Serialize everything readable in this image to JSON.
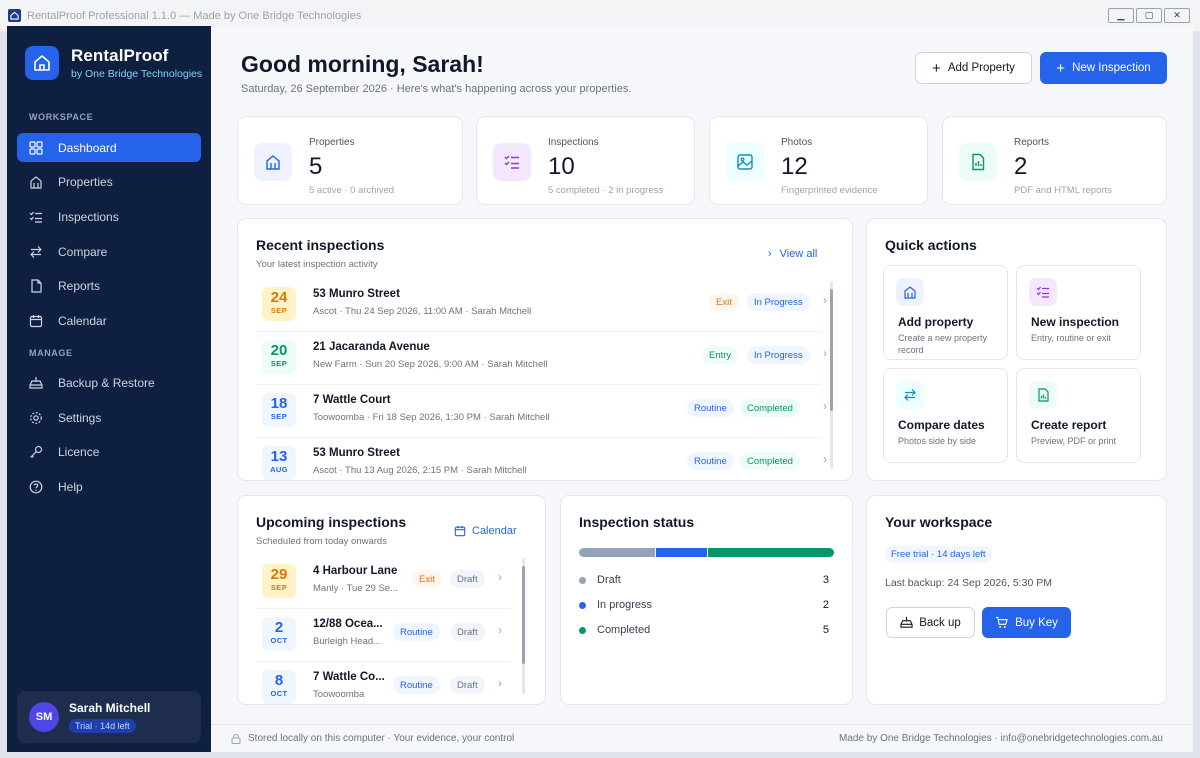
{
  "window": {
    "title": "RentalProof Professional 1.1.0 — Made by One Bridge Technologies",
    "min": "▁",
    "max": "▢",
    "close": "✕"
  },
  "brand": {
    "name": "RentalProof",
    "sub": "by One Bridge Technologies"
  },
  "sidebar": {
    "workspace_label": "WORKSPACE",
    "manage_label": "MANAGE",
    "items": [
      {
        "label": "Dashboard",
        "icon": "grid-icon"
      },
      {
        "label": "Properties",
        "icon": "building-icon"
      },
      {
        "label": "Inspections",
        "icon": "checklist-icon"
      },
      {
        "label": "Compare",
        "icon": "swap-icon"
      },
      {
        "label": "Reports",
        "icon": "file-icon"
      },
      {
        "label": "Calendar",
        "icon": "calendar-icon"
      },
      {
        "label": "Backup & Restore",
        "icon": "backup-icon"
      },
      {
        "label": "Settings",
        "icon": "gear-icon"
      },
      {
        "label": "Licence",
        "icon": "key-icon"
      },
      {
        "label": "Help",
        "icon": "help-icon"
      }
    ]
  },
  "user": {
    "initials": "SM",
    "name": "Sarah Mitchell",
    "badge": "Trial · 14d left"
  },
  "header": {
    "greeting": "Good morning, Sarah!",
    "subline": "Saturday, 26 September 2026  ·  Here's what's happening across your properties.",
    "add_property": "Add Property",
    "new_inspection": "New Inspection"
  },
  "stats": [
    {
      "label": "Properties",
      "value": "5",
      "sub": "5 active · 0 archived"
    },
    {
      "label": "Inspections",
      "value": "10",
      "sub": "5 completed · 2 in progress"
    },
    {
      "label": "Photos",
      "value": "12",
      "sub": "Fingerprinted evidence"
    },
    {
      "label": "Reports",
      "value": "2",
      "sub": "PDF and HTML reports"
    }
  ],
  "recent": {
    "title": "Recent inspections",
    "sub": "Your latest inspection activity",
    "view_all": "View all",
    "rows": [
      {
        "day": "24",
        "mon": "SEP",
        "addr": "53 Munro Street",
        "meta": "Ascot  ·  Thu 24 Sep 2026, 11:00 AM  ·  Sarah Mitchell",
        "type": "Exit",
        "status": "In Progress"
      },
      {
        "day": "20",
        "mon": "SEP",
        "addr": "21 Jacaranda Avenue",
        "meta": "New Farm  ·  Sun 20 Sep 2026, 9:00 AM  ·  Sarah Mitchell",
        "type": "Entry",
        "status": "In Progress"
      },
      {
        "day": "18",
        "mon": "SEP",
        "addr": "7 Wattle Court",
        "meta": "Toowoomba  ·  Fri 18 Sep 2026, 1:30 PM  ·  Sarah Mitchell",
        "type": "Routine",
        "status": "Completed"
      },
      {
        "day": "13",
        "mon": "AUG",
        "addr": "53 Munro Street",
        "meta": "Ascot  ·  Thu 13 Aug 2026, 2:15 PM  ·  Sarah Mitchell",
        "type": "Routine",
        "status": "Completed"
      }
    ]
  },
  "quick": {
    "title": "Quick actions",
    "items": [
      {
        "title": "Add property",
        "sub": "Create a new property record"
      },
      {
        "title": "New inspection",
        "sub": "Entry, routine or exit"
      },
      {
        "title": "Compare dates",
        "sub": "Photos side by side"
      },
      {
        "title": "Create report",
        "sub": "Preview, PDF or print"
      }
    ]
  },
  "upcoming": {
    "title": "Upcoming inspections",
    "sub": "Scheduled from today onwards",
    "calendar": "Calendar",
    "rows": [
      {
        "day": "29",
        "mon": "SEP",
        "addr": "4 Harbour Lane",
        "meta": "Manly  ·  Tue 29 Se...",
        "type": "Exit",
        "status": "Draft"
      },
      {
        "day": "2",
        "mon": "OCT",
        "addr": "12/88 Ocea...",
        "meta": "Burleigh Head...",
        "type": "Routine",
        "status": "Draft"
      },
      {
        "day": "8",
        "mon": "OCT",
        "addr": "7 Wattle Co...",
        "meta": "Toowoomba",
        "type": "Routine",
        "status": "Draft"
      }
    ]
  },
  "status": {
    "title": "Inspection status",
    "rows": [
      {
        "label": "Draft",
        "count": 3,
        "color": "#94a3b8"
      },
      {
        "label": "In progress",
        "count": 2,
        "color": "#2563eb"
      },
      {
        "label": "Completed",
        "count": 5,
        "color": "#059669"
      }
    ]
  },
  "workspace": {
    "title": "Your workspace",
    "badge": "Free trial · 14 days left",
    "backup": "Last backup: 24 Sep 2026, 5:30 PM",
    "back_up": "Back up",
    "buy_key": "Buy Key"
  },
  "footer": {
    "left": "Stored locally on this computer  ·  Your evidence, your control",
    "right": "Made by One Bridge Technologies  ·  info@onebridgetechnologies.com.au"
  }
}
